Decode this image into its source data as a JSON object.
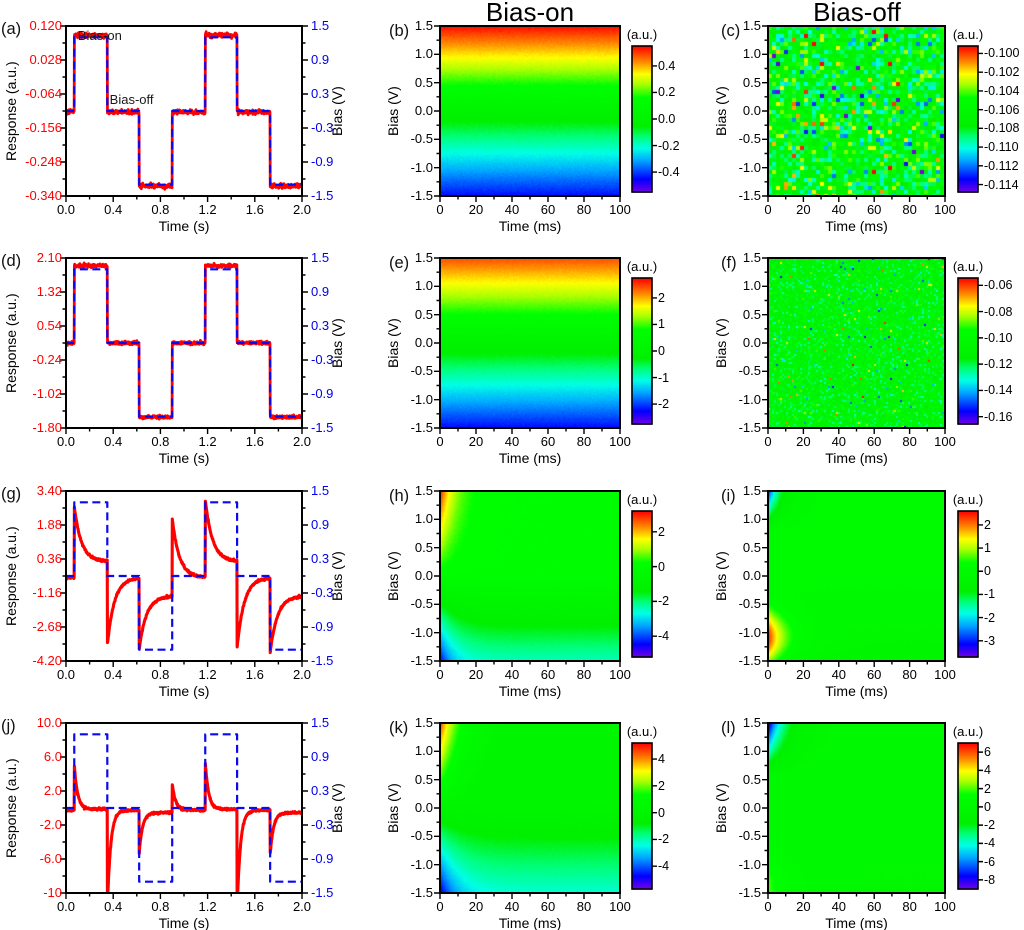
{
  "colors": {
    "response_red": "#ff0000",
    "bias_blue": "#0a0af0",
    "axis_black": "#000000",
    "background": "#ffffff"
  },
  "chart_data": {
    "type": "multi-panel",
    "layout": "4 rows x 3 cols",
    "col_titles": [
      "Bias-on",
      "Bias-off"
    ],
    "bias_wave": {
      "times": [
        0,
        0.07,
        0.35,
        0.62,
        0.9,
        1.18,
        1.45,
        1.73,
        2.0
      ],
      "levels_v": [
        0,
        1.3,
        0,
        -1.3,
        0,
        1.3,
        0,
        -1.3
      ]
    },
    "panels": [
      {
        "id": "a",
        "kind": "line",
        "label": "(a)",
        "xlabel": "Time (s)",
        "ylabel_left": "Response (a.u.)",
        "ylabel_right": "Bias (V)",
        "xlim": [
          0,
          2
        ],
        "xticks": [
          "0.0",
          "0.4",
          "0.8",
          "1.2",
          "1.6",
          "2.0"
        ],
        "ylim_left": [
          0.12,
          -0.34
        ],
        "yticks_left": [
          "0.120",
          "0.028",
          "-0.064",
          "-0.156",
          "-0.248",
          "-0.340"
        ],
        "ylim_right": [
          1.5,
          -1.5
        ],
        "yticks_right": [
          "1.5",
          "0.9",
          "0.3",
          "-0.3",
          "-0.9",
          "-1.5"
        ],
        "response": {
          "model": "square",
          "high": 0.095,
          "mid": -0.113,
          "low": -0.313,
          "noise": 0.0032
        },
        "annotations": [
          {
            "text": "Bias-on",
            "x": 0.1,
            "y": 0.118
          },
          {
            "text": "Bias-off",
            "x": 0.37,
            "y": -0.055
          }
        ]
      },
      {
        "id": "b",
        "kind": "heatmap",
        "label": "(b)",
        "title": "Bias-on",
        "xlabel": "Time (ms)",
        "ylabel": "Bias (V)",
        "xlim": [
          0,
          100
        ],
        "xticks": [
          "0",
          "20",
          "40",
          "60",
          "80",
          "100"
        ],
        "ylim": [
          1.5,
          -1.5
        ],
        "yticks": [
          "1.5",
          "1.0",
          "0.5",
          "0.0",
          "-0.5",
          "-1.0",
          "-1.5"
        ],
        "colorbar": {
          "unit": "(a.u.)",
          "ticks": [
            "0.4",
            "0.2",
            "0.0",
            "-0.2",
            "-0.4"
          ],
          "values": [
            0.4,
            0.2,
            0,
            -0.2,
            -0.4
          ],
          "range": [
            -0.55,
            0.55
          ]
        },
        "field": {
          "model": "linear",
          "gain_pos": 0.36,
          "gain_neg": 0.293,
          "noise": 0.014
        }
      },
      {
        "id": "c",
        "kind": "heatmap",
        "label": "(c)",
        "title": "Bias-off",
        "xlabel": "Time (ms)",
        "ylabel": "Bias (V)",
        "xlim": [
          0,
          100
        ],
        "xticks": [
          "0",
          "20",
          "40",
          "60",
          "80",
          "100"
        ],
        "ylim": [
          1.5,
          -1.5
        ],
        "yticks": [
          "1.5",
          "1.0",
          "0.5",
          "0.0",
          "-0.5",
          "-1.0",
          "-1.5"
        ],
        "colorbar": {
          "unit": "(a.u.)",
          "ticks": [
            "-0.100",
            "-0.102",
            "-0.104",
            "-0.106",
            "-0.108",
            "-0.110",
            "-0.112",
            "-0.114"
          ],
          "values": [
            -0.1,
            -0.102,
            -0.104,
            -0.106,
            -0.108,
            -0.11,
            -0.112,
            -0.114
          ],
          "range": [
            -0.1148,
            -0.0992
          ]
        },
        "field": {
          "model": "noise",
          "mean": -0.107,
          "sigma": 0.0021,
          "cell": 4,
          "outlier_p": 0.02,
          "outlier_amp": 0.006
        }
      },
      {
        "id": "d",
        "kind": "line",
        "label": "(d)",
        "xlabel": "Time (s)",
        "ylabel_left": "Response (a.u.)",
        "ylabel_right": "Bias (V)",
        "xlim": [
          0,
          2
        ],
        "xticks": [
          "0.0",
          "0.4",
          "0.8",
          "1.2",
          "1.6",
          "2.0"
        ],
        "ylim_left": [
          2.1,
          -1.8
        ],
        "yticks_left": [
          "2.10",
          "1.32",
          "0.54",
          "-0.24",
          "-1.02",
          "-1.80"
        ],
        "ylim_right": [
          1.5,
          -1.5
        ],
        "yticks_right": [
          "1.5",
          "0.9",
          "0.3",
          "-0.3",
          "-0.9",
          "-1.5"
        ],
        "response": {
          "model": "square",
          "high": 1.92,
          "mid": 0.15,
          "low": -1.55,
          "noise": 0.02
        },
        "annotations": []
      },
      {
        "id": "e",
        "kind": "heatmap",
        "label": "(e)",
        "title": "",
        "xlabel": "Time (ms)",
        "ylabel": "Bias (V)",
        "xlim": [
          0,
          100
        ],
        "xticks": [
          "0",
          "20",
          "40",
          "60",
          "80",
          "100"
        ],
        "ylim": [
          1.5,
          -1.5
        ],
        "yticks": [
          "1.5",
          "1.0",
          "0.5",
          "0.0",
          "-0.5",
          "-1.0",
          "-1.5"
        ],
        "colorbar": {
          "unit": "(a.u.)",
          "ticks": [
            "2",
            "1",
            "0",
            "-1",
            "-2"
          ],
          "values": [
            2,
            1,
            0,
            -1,
            -2
          ],
          "range": [
            -2.75,
            2.75
          ]
        },
        "field": {
          "model": "linear",
          "gain_pos": 1.6,
          "gain_neg": 1.47,
          "noise": 0.06
        }
      },
      {
        "id": "f",
        "kind": "heatmap",
        "label": "(f)",
        "title": "",
        "xlabel": "Time (ms)",
        "ylabel": "Bias (V)",
        "xlim": [
          0,
          100
        ],
        "xticks": [
          "0",
          "20",
          "40",
          "60",
          "80",
          "100"
        ],
        "ylim": [
          1.5,
          -1.5
        ],
        "yticks": [
          "1.5",
          "1.0",
          "0.5",
          "0.0",
          "-0.5",
          "-1.0",
          "-1.5"
        ],
        "colorbar": {
          "unit": "(a.u.)",
          "ticks": [
            "-0.06",
            "-0.08",
            "-0.10",
            "-0.12",
            "-0.14",
            "-0.16"
          ],
          "values": [
            -0.06,
            -0.08,
            -0.1,
            -0.12,
            -0.14,
            -0.16
          ],
          "range": [
            -0.1656,
            -0.0544
          ]
        },
        "field": {
          "model": "noise",
          "mean": -0.11,
          "sigma": 0.0075,
          "cell": 2,
          "outlier_p": 0.02,
          "outlier_amp": 0.03
        }
      },
      {
        "id": "g",
        "kind": "line",
        "label": "(g)",
        "xlabel": "Time (s)",
        "ylabel_left": "Response (a.u.)",
        "ylabel_right": "Bias (V)",
        "xlim": [
          0,
          2
        ],
        "xticks": [
          "0.0",
          "0.4",
          "0.8",
          "1.2",
          "1.6",
          "2.0"
        ],
        "ylim_left": [
          3.4,
          -4.2
        ],
        "yticks_left": [
          "3.40",
          "1.88",
          "0.36",
          "-1.16",
          "-2.68",
          "-4.20"
        ],
        "ylim_right": [
          1.5,
          -1.5
        ],
        "yticks_right": [
          "1.5",
          "0.9",
          "0.3",
          "-0.3",
          "-0.9",
          "-1.5"
        ],
        "response": {
          "model": "spike",
          "tau": 0.06,
          "steady_high": 0.25,
          "steady_mid": -0.47,
          "steady_low": -1.3,
          "peaks": [
            2.71,
            -3.48,
            -3.7,
            2.18,
            3.04,
            -3.6,
            -3.84
          ]
        },
        "annotations": []
      },
      {
        "id": "h",
        "kind": "heatmap",
        "label": "(h)",
        "title": "",
        "xlabel": "Time (ms)",
        "ylabel": "Bias (V)",
        "xlim": [
          0,
          100
        ],
        "xticks": [
          "0",
          "20",
          "40",
          "60",
          "80",
          "100"
        ],
        "ylim": [
          1.5,
          -1.5
        ],
        "yticks": [
          "1.5",
          "1.0",
          "0.5",
          "0.0",
          "-0.5",
          "-1.0",
          "-1.5"
        ],
        "colorbar": {
          "unit": "(a.u.)",
          "ticks": [
            "2",
            "0",
            "-2",
            "-4"
          ],
          "values": [
            2,
            0,
            -2,
            -4
          ],
          "range": [
            -5.2,
            3.2
          ]
        },
        "field": {
          "model": "transient",
          "gp": 2.0,
          "gn": 1.35,
          "pn": 1.6,
          "tau": 8
        }
      },
      {
        "id": "i",
        "kind": "heatmap",
        "label": "(i)",
        "title": "",
        "xlabel": "Time (ms)",
        "ylabel": "Bias (V)",
        "xlim": [
          0,
          100
        ],
        "xticks": [
          "0",
          "20",
          "40",
          "60",
          "80",
          "100"
        ],
        "ylim": [
          1.5,
          -1.5
        ],
        "yticks": [
          "1.5",
          "1.0",
          "0.5",
          "0.0",
          "-0.5",
          "-1.0",
          "-1.5"
        ],
        "colorbar": {
          "unit": "(a.u.)",
          "ticks": [
            "2",
            "1",
            "0",
            "-1",
            "-2",
            "-3"
          ],
          "values": [
            2,
            1,
            0,
            -1,
            -2,
            -3
          ],
          "range": [
            -3.7,
            2.6
          ]
        },
        "field": {
          "model": "lobes",
          "pn": 0.25,
          "lobes": [
            {
              "kind": "ramp",
              "from": 0.8,
              "amp": -3.0,
              "tau": 7
            },
            {
              "kind": "gauss",
              "center": -1.1,
              "width": 0.33,
              "amp": 2.7,
              "tau": 10
            }
          ]
        }
      },
      {
        "id": "j",
        "kind": "line",
        "label": "(j)",
        "xlabel": "Time (s)",
        "ylabel_left": "Response (a.u.)",
        "ylabel_right": "Bias (V)",
        "xlim": [
          0,
          2
        ],
        "xticks": [
          "0.0",
          "0.4",
          "0.8",
          "1.2",
          "1.6",
          "2.0"
        ],
        "ylim_left": [
          10.0,
          -10.0
        ],
        "yticks_left": [
          "10.0",
          "6.0",
          "2.0",
          "-2.0",
          "-6.0",
          "-10"
        ],
        "ylim_right": [
          1.5,
          -1.5
        ],
        "yticks_right": [
          "1.5",
          "0.9",
          "0.3",
          "-0.3",
          "-0.9",
          "-1.5"
        ],
        "response": {
          "model": "spike",
          "tau": 0.028,
          "steady_high": -0.15,
          "steady_mid": -0.25,
          "steady_low": -0.55,
          "peaks": [
            5.1,
            -12,
            -5.4,
            2.9,
            5.5,
            -12,
            -5.5
          ]
        },
        "annotations": []
      },
      {
        "id": "k",
        "kind": "heatmap",
        "label": "(k)",
        "title": "",
        "xlabel": "Time (ms)",
        "ylabel": "Bias (V)",
        "xlim": [
          0,
          100
        ],
        "xticks": [
          "0",
          "20",
          "40",
          "60",
          "80",
          "100"
        ],
        "ylim": [
          1.5,
          -1.5
        ],
        "yticks": [
          "1.5",
          "1.0",
          "0.5",
          "0.0",
          "-0.5",
          "-1.0",
          "-1.5"
        ],
        "colorbar": {
          "unit": "(a.u.)",
          "ticks": [
            "4",
            "2",
            "0",
            "-2",
            "-4"
          ],
          "values": [
            4,
            2,
            0,
            -2,
            -4
          ],
          "range": [
            -5.7,
            5.2
          ]
        },
        "field": {
          "model": "transient",
          "gp": 3.1,
          "gn": 1.8,
          "pn": 1.5,
          "tau": 9.5
        }
      },
      {
        "id": "l",
        "kind": "heatmap",
        "label": "(l)",
        "title": "",
        "xlabel": "Time (ms)",
        "ylabel": "Bias (V)",
        "xlim": [
          0,
          100
        ],
        "xticks": [
          "0",
          "20",
          "40",
          "60",
          "80",
          "100"
        ],
        "ylim": [
          1.5,
          -1.5
        ],
        "yticks": [
          "1.5",
          "1.0",
          "0.5",
          "0.0",
          "-0.5",
          "-1.0",
          "-1.5"
        ],
        "colorbar": {
          "unit": "(a.u.)",
          "ticks": [
            "6",
            "4",
            "2",
            "0",
            "-2",
            "-4",
            "-6",
            "-8"
          ],
          "values": [
            6,
            4,
            2,
            0,
            -2,
            -4,
            -6,
            -8
          ],
          "range": [
            -9,
            7
          ]
        },
        "field": {
          "model": "lobes",
          "pn": 0.15,
          "lobes": [
            {
              "kind": "ramp",
              "from": 0.6,
              "amp": -8.5,
              "tau": 9
            },
            {
              "kind": "gauss",
              "center": -1.5,
              "width": 0.5,
              "amp": 2.2,
              "tau": 14
            }
          ]
        }
      }
    ]
  }
}
